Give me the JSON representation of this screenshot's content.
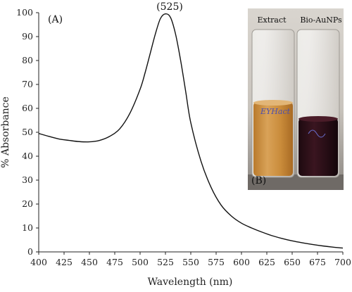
{
  "chart_data": {
    "type": "line",
    "panel_label": "(A)",
    "peak_label": "(525)",
    "xlabel": "Wavelength (nm)",
    "ylabel": "% Absorbance",
    "xlim": [
      400,
      700
    ],
    "ylim": [
      0,
      100
    ],
    "x_ticks": [
      400,
      425,
      450,
      475,
      500,
      525,
      550,
      575,
      600,
      625,
      650,
      675,
      700
    ],
    "y_ticks": [
      0,
      10,
      20,
      30,
      40,
      50,
      60,
      70,
      80,
      90,
      100
    ],
    "grid": false,
    "legend": "none",
    "line_color": "#111111",
    "series": [
      {
        "x": [
          400,
          410,
          420,
          430,
          440,
          450,
          460,
          470,
          480,
          490,
          500,
          505,
          510,
          515,
          520,
          525,
          530,
          535,
          540,
          545,
          550,
          560,
          570,
          580,
          590,
          600,
          610,
          620,
          630,
          640,
          650,
          660,
          670,
          680,
          690,
          700
        ],
        "values": [
          49.5,
          48.3,
          47.2,
          46.6,
          46.1,
          46.0,
          46.6,
          48.3,
          51.5,
          58.0,
          68.0,
          75.0,
          83.0,
          91.0,
          97.5,
          99.5,
          98.0,
          91.0,
          80.0,
          67.0,
          54.0,
          38.0,
          27.0,
          19.5,
          15.0,
          12.0,
          10.0,
          8.3,
          6.8,
          5.6,
          4.6,
          3.8,
          3.1,
          2.5,
          2.0,
          1.6
        ]
      }
    ]
  },
  "inset_photo": {
    "panel_label": "(B)",
    "labels": [
      "Extract",
      "Bio-AuNPs"
    ],
    "colors": {
      "extract": "#c98b3a",
      "bio_aunps": "#2a0f18",
      "background": "#cfcac4"
    }
  }
}
